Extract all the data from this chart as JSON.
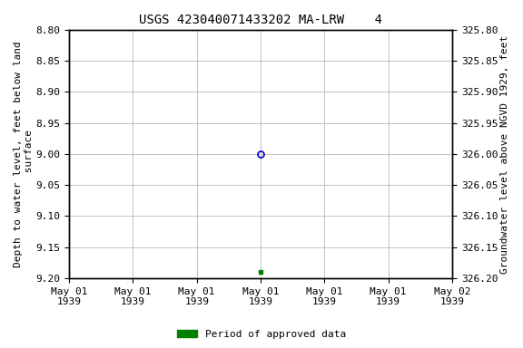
{
  "title": "USGS 423040071433202 MA-LRW    4",
  "ylabel_left": "Depth to water level, feet below land\n surface",
  "ylabel_right": "Groundwater level above NGVD 1929, feet",
  "ylim_left": [
    8.8,
    9.2
  ],
  "ylim_right": [
    325.8,
    326.2
  ],
  "yticks_left": [
    8.8,
    8.85,
    8.9,
    8.95,
    9.0,
    9.05,
    9.1,
    9.15,
    9.2
  ],
  "yticks_right": [
    325.8,
    325.85,
    325.9,
    325.95,
    326.0,
    326.05,
    326.1,
    326.15,
    326.2
  ],
  "ytick_labels_left": [
    "8.80",
    "8.85",
    "8.90",
    "8.95",
    "9.00",
    "9.05",
    "9.10",
    "9.15",
    "9.20"
  ],
  "ytick_labels_right": [
    "325.80",
    "325.85",
    "325.90",
    "325.95",
    "326.00",
    "326.05",
    "326.10",
    "326.15",
    "326.20"
  ],
  "xlim": [
    0,
    6
  ],
  "xticks": [
    0,
    1,
    2,
    3,
    4,
    5,
    6
  ],
  "xtick_labels": [
    "May 01\n1939",
    "May 01\n1939",
    "May 01\n1939",
    "May 01\n1939",
    "May 01\n1939",
    "May 01\n1939",
    "May 02\n1939"
  ],
  "point_blue_x": 3.0,
  "point_blue_y": 9.0,
  "point_green_x": 3.0,
  "point_green_y": 9.19,
  "point_blue_color": "#0000cc",
  "point_green_color": "#008000",
  "background_color": "#ffffff",
  "grid_color": "#c0c0c0",
  "legend_label": "Period of approved data",
  "legend_color": "#008000",
  "title_fontsize": 10,
  "label_fontsize": 8,
  "tick_fontsize": 8
}
